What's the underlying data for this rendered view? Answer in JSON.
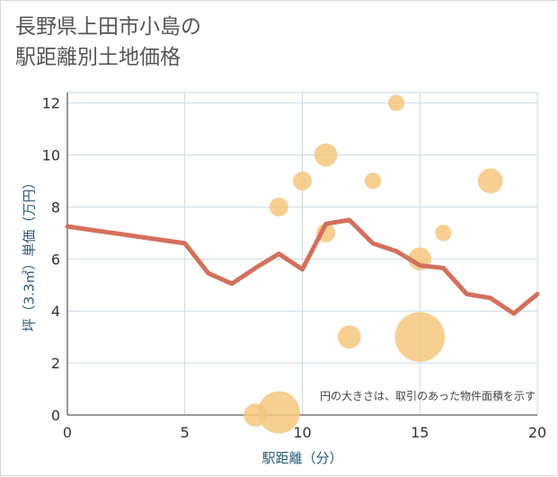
{
  "chart_data": {
    "type": "scatter",
    "title_lines": [
      "長野県上田市小島の",
      "駅距離別土地価格"
    ],
    "xlabel": "駅距離（分）",
    "ylabel": "坪（3.3㎡）単価（万円）",
    "xlim": [
      0,
      20
    ],
    "ylim": [
      0,
      12.4
    ],
    "xticks": [
      "0",
      "5",
      "10",
      "15",
      "20"
    ],
    "yticks": [
      "0",
      "2",
      "4",
      "6",
      "8",
      "10",
      "12"
    ],
    "note": "円の大きさは、取引のあった物件面積を示す",
    "colors": {
      "bubble": "#f5c77e",
      "line": "#d4705c",
      "grid": "#c9d9e6",
      "axis_text": "#2a5a7a"
    },
    "bubbles": [
      {
        "x": 8,
        "y": 0,
        "size": 3
      },
      {
        "x": 9,
        "y": 0.1,
        "size": 10
      },
      {
        "x": 9,
        "y": 8,
        "size": 2
      },
      {
        "x": 10,
        "y": 9,
        "size": 2
      },
      {
        "x": 11,
        "y": 10,
        "size": 3
      },
      {
        "x": 11,
        "y": 7,
        "size": 2
      },
      {
        "x": 12,
        "y": 3,
        "size": 3
      },
      {
        "x": 13,
        "y": 9,
        "size": 1.5
      },
      {
        "x": 14,
        "y": 12,
        "size": 1.5
      },
      {
        "x": 15,
        "y": 6,
        "size": 3
      },
      {
        "x": 15,
        "y": 3,
        "size": 14
      },
      {
        "x": 16,
        "y": 7,
        "size": 1.5
      },
      {
        "x": 18,
        "y": 9,
        "size": 3.5
      }
    ],
    "trend_line": {
      "x": [
        0,
        5,
        6,
        7,
        8,
        9,
        10,
        11,
        12,
        13,
        14,
        15,
        16,
        17,
        18,
        19,
        20
      ],
      "y": [
        7.25,
        6.6,
        5.45,
        5.05,
        5.65,
        6.2,
        5.6,
        7.35,
        7.5,
        6.6,
        6.3,
        5.75,
        5.65,
        4.65,
        4.5,
        3.9,
        4.65
      ]
    }
  }
}
